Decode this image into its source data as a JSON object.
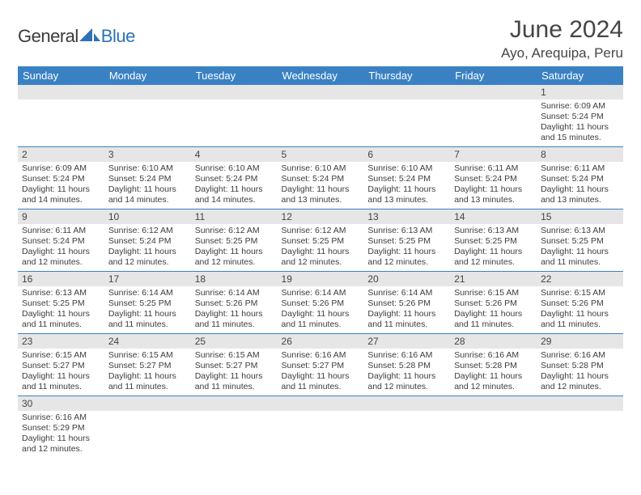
{
  "logo": {
    "part1": "General",
    "part2": "Blue"
  },
  "title": "June 2024",
  "location": "Ayo, Arequipa, Peru",
  "colors": {
    "header_bg": "#3a81c3",
    "header_text": "#ffffff",
    "daynum_bg": "#e6e6e6",
    "border": "#3a81c3",
    "logo_gray": "#3a3a3a",
    "logo_blue": "#2d72b5"
  },
  "weekdays": [
    "Sunday",
    "Monday",
    "Tuesday",
    "Wednesday",
    "Thursday",
    "Friday",
    "Saturday"
  ],
  "weeks": [
    [
      {
        "n": "",
        "sr": "",
        "ss": "",
        "dl": ""
      },
      {
        "n": "",
        "sr": "",
        "ss": "",
        "dl": ""
      },
      {
        "n": "",
        "sr": "",
        "ss": "",
        "dl": ""
      },
      {
        "n": "",
        "sr": "",
        "ss": "",
        "dl": ""
      },
      {
        "n": "",
        "sr": "",
        "ss": "",
        "dl": ""
      },
      {
        "n": "",
        "sr": "",
        "ss": "",
        "dl": ""
      },
      {
        "n": "1",
        "sr": "Sunrise: 6:09 AM",
        "ss": "Sunset: 5:24 PM",
        "dl": "Daylight: 11 hours and 15 minutes."
      }
    ],
    [
      {
        "n": "2",
        "sr": "Sunrise: 6:09 AM",
        "ss": "Sunset: 5:24 PM",
        "dl": "Daylight: 11 hours and 14 minutes."
      },
      {
        "n": "3",
        "sr": "Sunrise: 6:10 AM",
        "ss": "Sunset: 5:24 PM",
        "dl": "Daylight: 11 hours and 14 minutes."
      },
      {
        "n": "4",
        "sr": "Sunrise: 6:10 AM",
        "ss": "Sunset: 5:24 PM",
        "dl": "Daylight: 11 hours and 14 minutes."
      },
      {
        "n": "5",
        "sr": "Sunrise: 6:10 AM",
        "ss": "Sunset: 5:24 PM",
        "dl": "Daylight: 11 hours and 13 minutes."
      },
      {
        "n": "6",
        "sr": "Sunrise: 6:10 AM",
        "ss": "Sunset: 5:24 PM",
        "dl": "Daylight: 11 hours and 13 minutes."
      },
      {
        "n": "7",
        "sr": "Sunrise: 6:11 AM",
        "ss": "Sunset: 5:24 PM",
        "dl": "Daylight: 11 hours and 13 minutes."
      },
      {
        "n": "8",
        "sr": "Sunrise: 6:11 AM",
        "ss": "Sunset: 5:24 PM",
        "dl": "Daylight: 11 hours and 13 minutes."
      }
    ],
    [
      {
        "n": "9",
        "sr": "Sunrise: 6:11 AM",
        "ss": "Sunset: 5:24 PM",
        "dl": "Daylight: 11 hours and 12 minutes."
      },
      {
        "n": "10",
        "sr": "Sunrise: 6:12 AM",
        "ss": "Sunset: 5:24 PM",
        "dl": "Daylight: 11 hours and 12 minutes."
      },
      {
        "n": "11",
        "sr": "Sunrise: 6:12 AM",
        "ss": "Sunset: 5:25 PM",
        "dl": "Daylight: 11 hours and 12 minutes."
      },
      {
        "n": "12",
        "sr": "Sunrise: 6:12 AM",
        "ss": "Sunset: 5:25 PM",
        "dl": "Daylight: 11 hours and 12 minutes."
      },
      {
        "n": "13",
        "sr": "Sunrise: 6:13 AM",
        "ss": "Sunset: 5:25 PM",
        "dl": "Daylight: 11 hours and 12 minutes."
      },
      {
        "n": "14",
        "sr": "Sunrise: 6:13 AM",
        "ss": "Sunset: 5:25 PM",
        "dl": "Daylight: 11 hours and 12 minutes."
      },
      {
        "n": "15",
        "sr": "Sunrise: 6:13 AM",
        "ss": "Sunset: 5:25 PM",
        "dl": "Daylight: 11 hours and 11 minutes."
      }
    ],
    [
      {
        "n": "16",
        "sr": "Sunrise: 6:13 AM",
        "ss": "Sunset: 5:25 PM",
        "dl": "Daylight: 11 hours and 11 minutes."
      },
      {
        "n": "17",
        "sr": "Sunrise: 6:14 AM",
        "ss": "Sunset: 5:25 PM",
        "dl": "Daylight: 11 hours and 11 minutes."
      },
      {
        "n": "18",
        "sr": "Sunrise: 6:14 AM",
        "ss": "Sunset: 5:26 PM",
        "dl": "Daylight: 11 hours and 11 minutes."
      },
      {
        "n": "19",
        "sr": "Sunrise: 6:14 AM",
        "ss": "Sunset: 5:26 PM",
        "dl": "Daylight: 11 hours and 11 minutes."
      },
      {
        "n": "20",
        "sr": "Sunrise: 6:14 AM",
        "ss": "Sunset: 5:26 PM",
        "dl": "Daylight: 11 hours and 11 minutes."
      },
      {
        "n": "21",
        "sr": "Sunrise: 6:15 AM",
        "ss": "Sunset: 5:26 PM",
        "dl": "Daylight: 11 hours and 11 minutes."
      },
      {
        "n": "22",
        "sr": "Sunrise: 6:15 AM",
        "ss": "Sunset: 5:26 PM",
        "dl": "Daylight: 11 hours and 11 minutes."
      }
    ],
    [
      {
        "n": "23",
        "sr": "Sunrise: 6:15 AM",
        "ss": "Sunset: 5:27 PM",
        "dl": "Daylight: 11 hours and 11 minutes."
      },
      {
        "n": "24",
        "sr": "Sunrise: 6:15 AM",
        "ss": "Sunset: 5:27 PM",
        "dl": "Daylight: 11 hours and 11 minutes."
      },
      {
        "n": "25",
        "sr": "Sunrise: 6:15 AM",
        "ss": "Sunset: 5:27 PM",
        "dl": "Daylight: 11 hours and 11 minutes."
      },
      {
        "n": "26",
        "sr": "Sunrise: 6:16 AM",
        "ss": "Sunset: 5:27 PM",
        "dl": "Daylight: 11 hours and 11 minutes."
      },
      {
        "n": "27",
        "sr": "Sunrise: 6:16 AM",
        "ss": "Sunset: 5:28 PM",
        "dl": "Daylight: 11 hours and 12 minutes."
      },
      {
        "n": "28",
        "sr": "Sunrise: 6:16 AM",
        "ss": "Sunset: 5:28 PM",
        "dl": "Daylight: 11 hours and 12 minutes."
      },
      {
        "n": "29",
        "sr": "Sunrise: 6:16 AM",
        "ss": "Sunset: 5:28 PM",
        "dl": "Daylight: 11 hours and 12 minutes."
      }
    ],
    [
      {
        "n": "30",
        "sr": "Sunrise: 6:16 AM",
        "ss": "Sunset: 5:29 PM",
        "dl": "Daylight: 11 hours and 12 minutes."
      },
      {
        "n": "",
        "sr": "",
        "ss": "",
        "dl": ""
      },
      {
        "n": "",
        "sr": "",
        "ss": "",
        "dl": ""
      },
      {
        "n": "",
        "sr": "",
        "ss": "",
        "dl": ""
      },
      {
        "n": "",
        "sr": "",
        "ss": "",
        "dl": ""
      },
      {
        "n": "",
        "sr": "",
        "ss": "",
        "dl": ""
      },
      {
        "n": "",
        "sr": "",
        "ss": "",
        "dl": ""
      }
    ]
  ]
}
